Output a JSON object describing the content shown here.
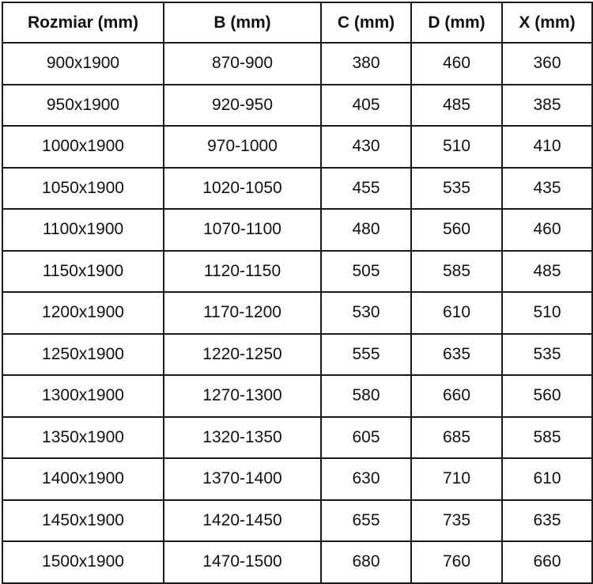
{
  "headers": [
    "Rozmiar (mm)",
    "B (mm)",
    "C (mm)",
    "D (mm)",
    "X (mm)"
  ],
  "rows": [
    [
      "900x1900",
      "870-900",
      "380",
      "460",
      "360"
    ],
    [
      "950x1900",
      "920-950",
      "405",
      "485",
      "385"
    ],
    [
      "1000x1900",
      "970-1000",
      "430",
      "510",
      "410"
    ],
    [
      "1050x1900",
      "1020-1050",
      "455",
      "535",
      "435"
    ],
    [
      "1100x1900",
      "1070-1100",
      "480",
      "560",
      "460"
    ],
    [
      "1150x1900",
      "1120-1150",
      "505",
      "585",
      "485"
    ],
    [
      "1200x1900",
      "1170-1200",
      "530",
      "610",
      "510"
    ],
    [
      "1250x1900",
      "1220-1250",
      "555",
      "635",
      "535"
    ],
    [
      "1300x1900",
      "1270-1300",
      "580",
      "660",
      "560"
    ],
    [
      "1350x1900",
      "1320-1350",
      "605",
      "685",
      "585"
    ],
    [
      "1400x1900",
      "1370-1400",
      "630",
      "710",
      "610"
    ],
    [
      "1450x1900",
      "1420-1450",
      "655",
      "735",
      "635"
    ],
    [
      "1500x1900",
      "1470-1500",
      "680",
      "760",
      "660"
    ]
  ]
}
